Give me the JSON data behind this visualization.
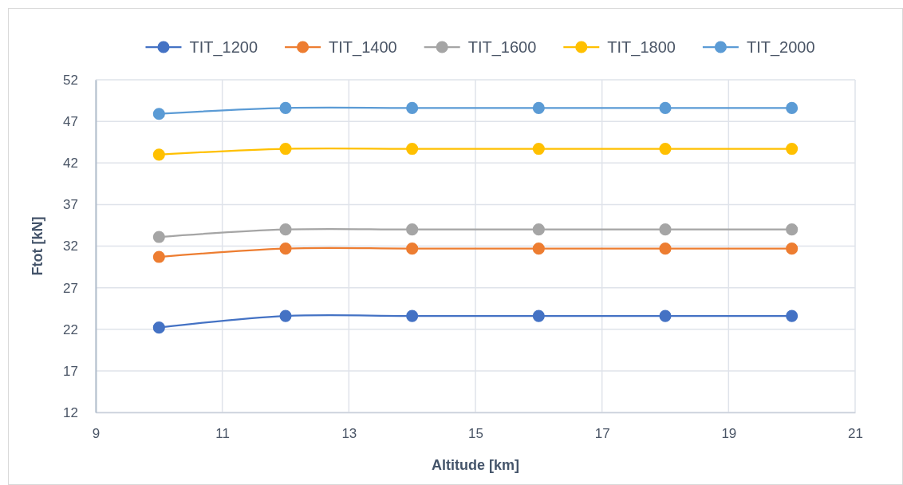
{
  "chart_data": {
    "type": "line",
    "xlabel": "Altitude [km]",
    "ylabel": "Ftot [kN]",
    "x": [
      10,
      12,
      14,
      16,
      18,
      20
    ],
    "series": [
      {
        "name": "TIT_1200",
        "color": "#4472c4",
        "values": [
          22.2,
          23.6,
          23.6,
          23.6,
          23.6,
          23.6
        ]
      },
      {
        "name": "TIT_1400",
        "color": "#ed7d31",
        "values": [
          30.7,
          31.7,
          31.7,
          31.7,
          31.7,
          31.7
        ]
      },
      {
        "name": "TIT_1600",
        "color": "#a5a5a5",
        "values": [
          33.1,
          34.0,
          34.0,
          34.0,
          34.0,
          34.0
        ]
      },
      {
        "name": "TIT_1800",
        "color": "#ffc000",
        "values": [
          43.0,
          43.7,
          43.7,
          43.7,
          43.7,
          43.7
        ]
      },
      {
        "name": "TIT_2000",
        "color": "#5b9bd5",
        "values": [
          47.9,
          48.6,
          48.6,
          48.6,
          48.6,
          48.6
        ]
      }
    ],
    "xlim": [
      9,
      21
    ],
    "xticks": [
      9,
      11,
      13,
      15,
      17,
      19,
      21
    ],
    "ylim": [
      12,
      52
    ],
    "yticks": [
      12,
      17,
      22,
      27,
      32,
      37,
      42,
      47,
      52
    ],
    "grid": true,
    "legend": "top",
    "marker": "circle",
    "line_style": "solid"
  }
}
